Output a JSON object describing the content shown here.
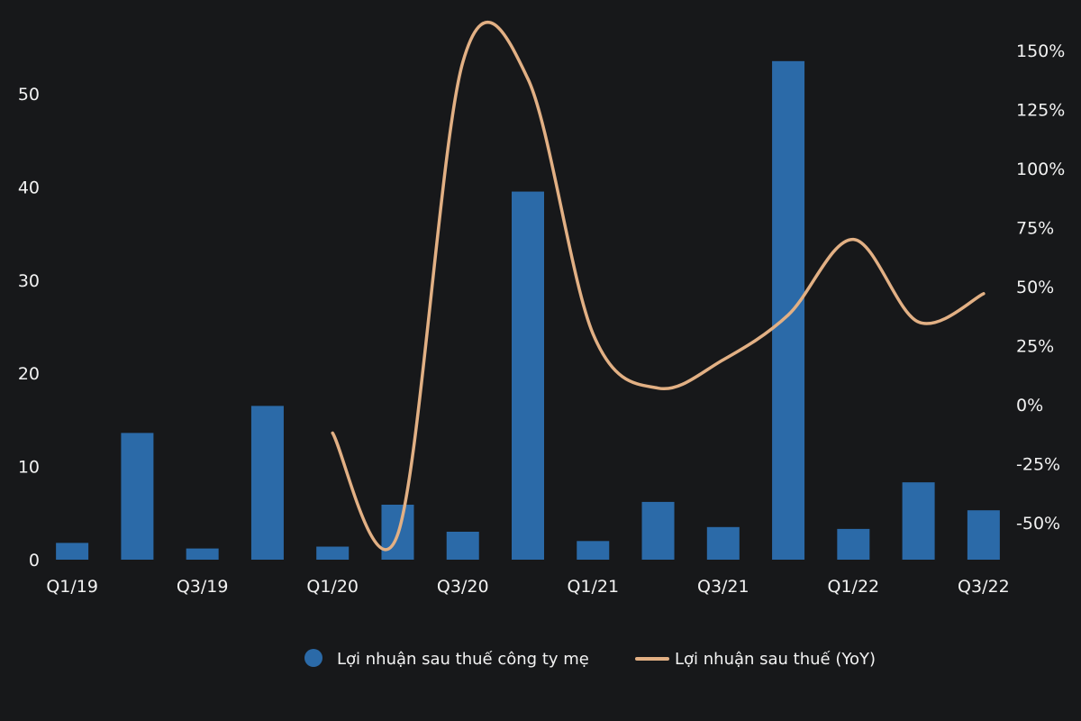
{
  "chart_data": {
    "type": "bar",
    "categories": [
      "Q1/19",
      "Q2/19",
      "Q3/19",
      "Q4/19",
      "Q1/20",
      "Q2/20",
      "Q3/20",
      "Q4/20",
      "Q1/21",
      "Q2/21",
      "Q3/21",
      "Q4/21",
      "Q1/22",
      "Q2/22",
      "Q3/22"
    ],
    "x_tick_labels": [
      "Q1/19",
      "Q3/19",
      "Q1/20",
      "Q3/20",
      "Q1/21",
      "Q3/21",
      "Q1/22",
      "Q3/22"
    ],
    "series": [
      {
        "name": "Lợi nhuận sau thuế công ty mẹ",
        "kind": "bar",
        "axis": "left",
        "color": "#2b6aa8",
        "values": [
          1.8,
          13.6,
          1.2,
          16.5,
          1.4,
          5.9,
          3.0,
          39.5,
          2.0,
          6.2,
          3.5,
          53.5,
          3.3,
          8.3,
          5.3
        ]
      },
      {
        "name": "Lợi nhuận sau thuế (YoY)",
        "kind": "line",
        "axis": "right",
        "color": "#e2b084",
        "values": [
          null,
          null,
          null,
          null,
          -12,
          -55,
          145,
          138,
          30,
          7,
          19,
          38,
          70,
          35,
          47
        ]
      }
    ],
    "y_left": {
      "ylim": [
        0,
        55
      ],
      "ticks": [
        0,
        10,
        20,
        30,
        40,
        50
      ]
    },
    "y_right": {
      "ylim": [
        -67,
        155
      ],
      "ticks": [
        -50,
        -25,
        0,
        25,
        50,
        75,
        100,
        125,
        150
      ],
      "unit": "%"
    },
    "legend_position": "bottom-center",
    "grid": false
  }
}
